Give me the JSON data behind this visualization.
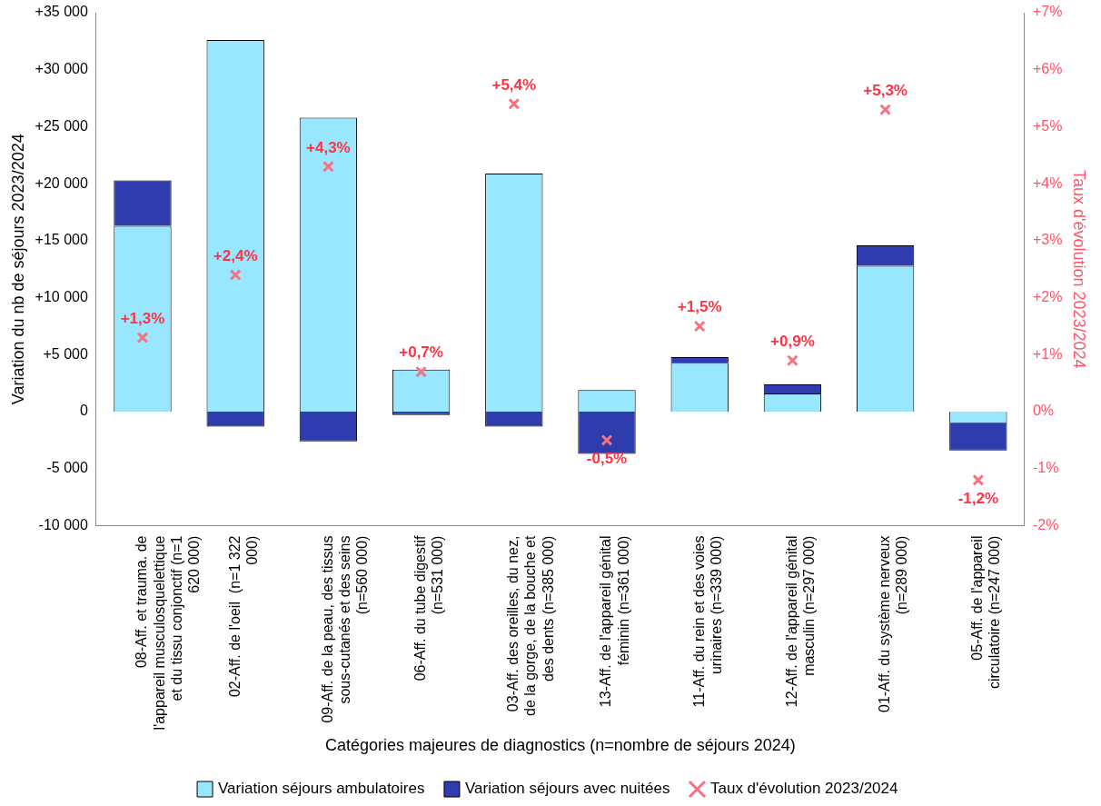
{
  "chart_data": {
    "type": "bar",
    "stacked": true,
    "categories": [
      "08-Aff. et trauma. de l'appareil musculosquelettique et du tissu conjonctif (n=1 620 000)",
      "02-Aff. de l'oeil  (n=1 322 000)",
      "09-Aff. de la peau, des tissus sous-cutanés et des seins (n=560 000)",
      "06-Aff. du tube digestif (n=531 000)",
      "03-Aff. des oreilles, du nez, de la gorge, de la bouche et des dents (n=385 000)",
      "13-Aff. de l'appareil génital féminin (n=361 000)",
      "11-Aff. du rein et des voies urinaires (n=339 000)",
      "12-Aff. de l'appareil génital masculin (n=297 000)",
      "01-Aff. du système nerveux (n=289 000)",
      "05-Aff. de l'appareil circulatoire (n=247 000)"
    ],
    "series": [
      {
        "name": "Variation séjours ambulatoires",
        "color": "#99e6ff",
        "values": [
          16300,
          32600,
          25800,
          3700,
          20900,
          1900,
          4300,
          1600,
          12800,
          -1000
        ]
      },
      {
        "name": "Variation séjours avec nuitées",
        "color": "#2e3cae",
        "values": [
          4000,
          -1300,
          -2600,
          -300,
          -1300,
          -3700,
          500,
          800,
          1800,
          -2400
        ]
      },
      {
        "name": "Taux d'évolution 2023/2024",
        "type": "scatter",
        "axis": "y2",
        "marker": "cross",
        "color": "#f87382",
        "values": [
          1.3,
          2.4,
          4.3,
          0.7,
          5.4,
          -0.5,
          1.5,
          0.9,
          5.3,
          -1.2
        ],
        "value_labels": [
          "+1,3%",
          "+2,4%",
          "+4,3%",
          "+0,7%",
          "+5,4%",
          "-0,5%",
          "+1,5%",
          "+0,9%",
          "+5,3%",
          "-1,2%"
        ]
      }
    ],
    "xlabel": "Catégories majeures de diagnostics (n=nombre de séjours 2024)",
    "ylabel": "Variation du nb de séjours 2023/2024",
    "y2label": "Taux d'évolution 2023/2024",
    "ylim": [
      -10000,
      35000
    ],
    "yticks": [
      {
        "value": -10000,
        "label": "-10 000"
      },
      {
        "value": -5000,
        "label": "-5 000"
      },
      0,
      {
        "value": 5000,
        "label": "+5 000"
      },
      {
        "value": 10000,
        "label": "+10 000"
      },
      {
        "value": 15000,
        "label": "+15 000"
      },
      {
        "value": 20000,
        "label": "+20 000"
      },
      {
        "value": 25000,
        "label": "+25 000"
      },
      {
        "value": 30000,
        "label": "+30 000"
      },
      {
        "value": 35000,
        "label": "+35 000"
      }
    ],
    "y2lim": [
      -2,
      7
    ],
    "y2ticks": [
      {
        "value": -2,
        "label": "-2%"
      },
      {
        "value": -1,
        "label": "-1%"
      },
      {
        "value": 0,
        "label": "0%"
      },
      {
        "value": 1,
        "label": "+1%"
      },
      {
        "value": 2,
        "label": "+2%"
      },
      {
        "value": 3,
        "label": "+3%"
      },
      {
        "value": 4,
        "label": "+4%"
      },
      {
        "value": 5,
        "label": "+5%"
      },
      {
        "value": 6,
        "label": "+6%"
      },
      {
        "value": 7,
        "label": "+7%"
      }
    ],
    "grid": false,
    "legend": "bottom"
  }
}
